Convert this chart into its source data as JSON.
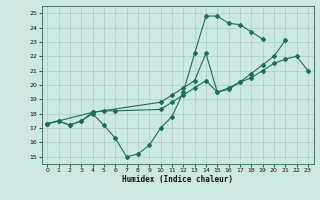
{
  "xlabel": "Humidex (Indice chaleur)",
  "bg_color": "#cce8e0",
  "grid_color": "#aaccc4",
  "line_color": "#1a6e60",
  "xlim": [
    -0.5,
    23.5
  ],
  "ylim": [
    14.5,
    25.5
  ],
  "xticks": [
    0,
    1,
    2,
    3,
    4,
    5,
    6,
    7,
    8,
    9,
    10,
    11,
    12,
    13,
    14,
    15,
    16,
    17,
    18,
    19,
    20,
    21,
    22,
    23
  ],
  "yticks": [
    15,
    16,
    17,
    18,
    19,
    20,
    21,
    22,
    23,
    24,
    25
  ],
  "curve1_x": [
    0,
    1,
    2,
    3,
    4,
    5,
    6,
    7,
    8,
    9,
    10,
    11,
    12,
    13,
    14,
    15,
    16,
    17,
    18,
    19
  ],
  "curve1_y": [
    17.3,
    17.5,
    17.2,
    17.5,
    18.0,
    17.2,
    16.3,
    15.0,
    15.2,
    15.8,
    17.0,
    17.8,
    19.5,
    22.2,
    24.8,
    24.8,
    24.3,
    24.2,
    23.7,
    23.2
  ],
  "curve2_x": [
    0,
    1,
    2,
    3,
    4,
    10,
    11,
    12,
    13,
    14,
    15,
    16,
    17,
    18,
    19,
    20,
    21
  ],
  "curve2_y": [
    17.3,
    17.5,
    17.2,
    17.5,
    18.1,
    18.8,
    19.3,
    19.8,
    20.3,
    22.2,
    19.5,
    19.7,
    20.2,
    20.8,
    21.4,
    22.0,
    23.1
  ],
  "curve3_x": [
    0,
    4,
    5,
    6,
    10,
    11,
    12,
    13,
    14,
    15,
    16,
    17,
    18,
    19,
    20,
    21,
    22,
    23
  ],
  "curve3_y": [
    17.3,
    18.1,
    18.2,
    18.2,
    18.3,
    18.8,
    19.3,
    19.8,
    20.3,
    19.5,
    19.8,
    20.2,
    20.5,
    21.0,
    21.5,
    21.8,
    22.0,
    21.0
  ]
}
